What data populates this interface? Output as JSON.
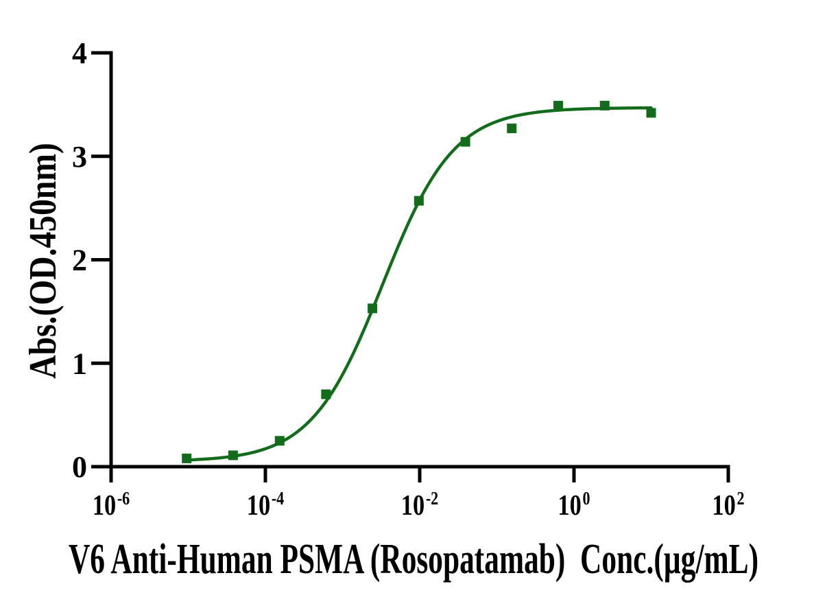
{
  "figure": {
    "background": "#ffffff",
    "text_color": "#000000"
  },
  "chart_data": {
    "type": "scatter",
    "title": "",
    "xlabel": "V6 Anti-Human PSMA (Rosopatamab)  Conc.(µg/mL)",
    "ylabel": "Abs.(OD.450nm)",
    "x_scale": "log10",
    "x_tick_base": "10",
    "x_tick_exponents": [
      -6,
      -4,
      -2,
      0,
      2
    ],
    "xlim": [
      1e-06,
      100
    ],
    "y_ticks": [
      0,
      1,
      2,
      3,
      4
    ],
    "ylim": [
      0,
      4
    ],
    "grid": false,
    "legend": "none",
    "series": [
      {
        "marker": "filled-square",
        "color": "#126c1b",
        "x": [
          9.54e-06,
          3.81e-05,
          0.000153,
          0.00061,
          0.00244,
          0.00977,
          0.0391,
          0.156,
          0.625,
          2.5,
          10
        ],
        "y": [
          0.08,
          0.11,
          0.25,
          0.7,
          1.53,
          2.57,
          3.14,
          3.27,
          3.49,
          3.49,
          3.42
        ]
      }
    ],
    "fit_curve": {
      "model": "4PL",
      "bottom": 0.05,
      "top": 3.47,
      "ec50": 0.0033,
      "hill": 0.94,
      "color": "#126c1b",
      "x_range": [
        9.54e-06,
        10
      ]
    }
  }
}
